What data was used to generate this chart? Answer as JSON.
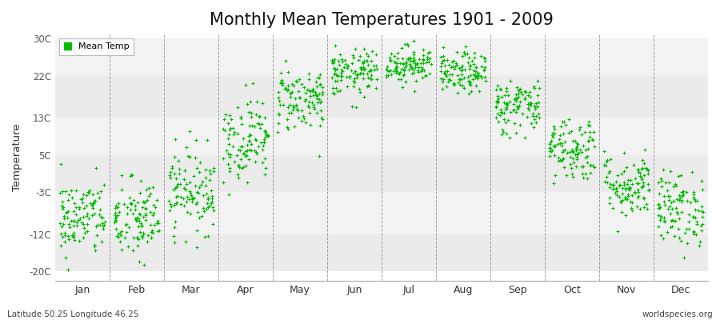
{
  "title": "Monthly Mean Temperatures 1901 - 2009",
  "ylabel": "Temperature",
  "yticks": [
    -20,
    -12,
    -3,
    5,
    13,
    22,
    30
  ],
  "ytick_labels": [
    "-20C",
    "-12C",
    "-3C",
    "5C",
    "13C",
    "22C",
    "30C"
  ],
  "ylim": [
    -22,
    31
  ],
  "months": [
    "Jan",
    "Feb",
    "Mar",
    "Apr",
    "May",
    "Jun",
    "Jul",
    "Aug",
    "Sep",
    "Oct",
    "Nov",
    "Dec"
  ],
  "monthly_means": [
    -8.5,
    -9.0,
    -2.5,
    8.5,
    17.0,
    22.5,
    24.5,
    22.5,
    15.5,
    6.5,
    -1.5,
    -6.5
  ],
  "monthly_stds": [
    4.2,
    4.5,
    4.5,
    4.5,
    3.5,
    2.5,
    2.0,
    2.2,
    3.0,
    3.5,
    3.5,
    4.0
  ],
  "n_years": 109,
  "dot_color": "#00BB00",
  "dot_size": 6,
  "bg_color_light": "#EFEFEF",
  "bg_color_dark": "#E4E4E4",
  "vline_color": "#888888",
  "hband_colors": [
    "#EBEBEB",
    "#F2F2F2"
  ],
  "footer_left": "Latitude 50.25 Longitude 46.25",
  "footer_right": "worldspecies.org",
  "legend_label": "Mean Temp",
  "fig_width": 9.0,
  "fig_height": 4.0,
  "dpi": 100,
  "title_fontsize": 15
}
